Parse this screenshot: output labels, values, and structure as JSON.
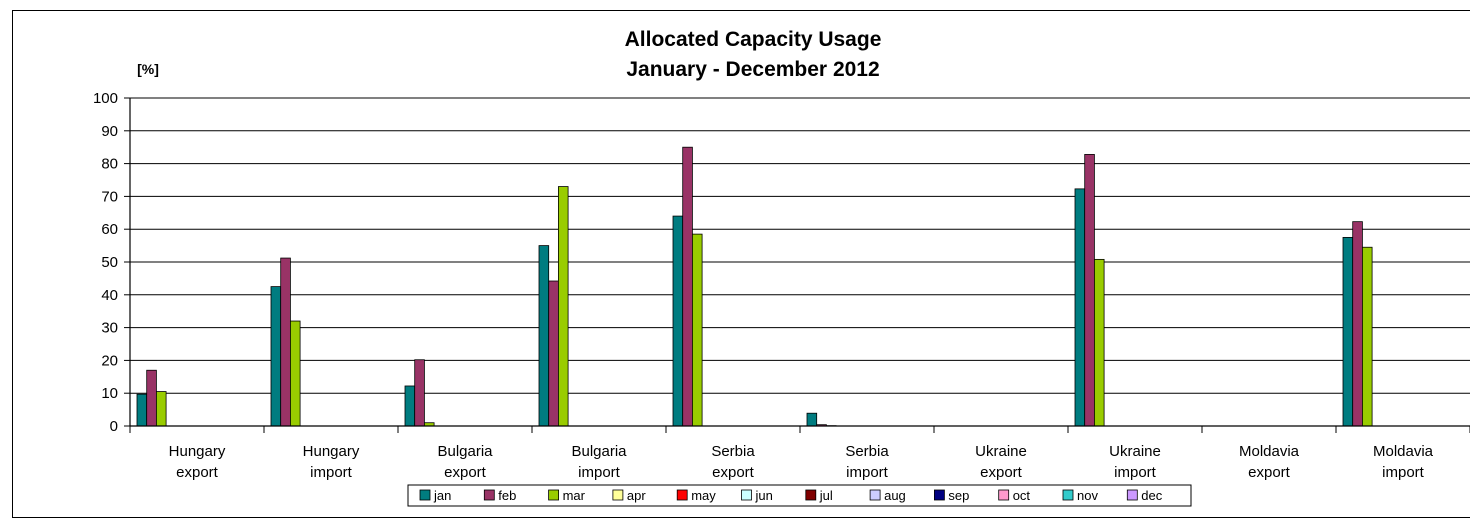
{
  "chart_data": {
    "type": "bar",
    "title_line1": "Allocated Capacity Usage",
    "title_line2": "January - December 2012",
    "ylabel": "[%]",
    "xlabel": "",
    "ylim": [
      0,
      100
    ],
    "yticks": [
      0,
      10,
      20,
      30,
      40,
      50,
      60,
      70,
      80,
      90,
      100
    ],
    "grid": true,
    "legend_position": "bottom",
    "categories": [
      [
        "Hungary",
        "export"
      ],
      [
        "Hungary",
        "import"
      ],
      [
        "Bulgaria",
        "export"
      ],
      [
        "Bulgaria",
        "import"
      ],
      [
        "Serbia",
        "export"
      ],
      [
        "Serbia",
        "import"
      ],
      [
        "Ukraine",
        "export"
      ],
      [
        "Ukraine",
        "import"
      ],
      [
        "Moldavia",
        "export"
      ],
      [
        "Moldavia",
        "import"
      ]
    ],
    "series": [
      {
        "name": "jan",
        "color": "#007C80",
        "values": [
          9.7,
          42.5,
          12.2,
          55,
          64,
          3.9,
          0,
          72.3,
          0,
          57.5
        ]
      },
      {
        "name": "feb",
        "color": "#993366",
        "values": [
          17,
          51.2,
          20.2,
          44.2,
          85,
          0.4,
          0,
          82.8,
          0,
          62.3
        ]
      },
      {
        "name": "mar",
        "color": "#99CC00",
        "values": [
          10.5,
          32,
          1,
          73,
          58.5,
          0.1,
          0,
          50.8,
          0,
          54.5
        ]
      },
      {
        "name": "apr",
        "color": "#FFFF99",
        "values": [
          0,
          0,
          0,
          0,
          0,
          0,
          0,
          0,
          0,
          0
        ]
      },
      {
        "name": "may",
        "color": "#FF0000",
        "values": [
          0,
          0,
          0,
          0,
          0,
          0,
          0,
          0,
          0,
          0
        ]
      },
      {
        "name": "jun",
        "color": "#CCFFFF",
        "values": [
          0,
          0,
          0,
          0,
          0,
          0,
          0,
          0,
          0,
          0
        ]
      },
      {
        "name": "jul",
        "color": "#800000",
        "values": [
          0,
          0,
          0,
          0,
          0,
          0,
          0,
          0,
          0,
          0
        ]
      },
      {
        "name": "aug",
        "color": "#CCCCFF",
        "values": [
          0,
          0,
          0,
          0,
          0,
          0,
          0,
          0,
          0,
          0
        ]
      },
      {
        "name": "sep",
        "color": "#000080",
        "values": [
          0,
          0,
          0,
          0,
          0,
          0,
          0,
          0,
          0,
          0
        ]
      },
      {
        "name": "oct",
        "color": "#FF99CC",
        "values": [
          0,
          0,
          0,
          0,
          0,
          0,
          0,
          0,
          0,
          0
        ]
      },
      {
        "name": "nov",
        "color": "#33CCCC",
        "values": [
          0,
          0,
          0,
          0,
          0,
          0,
          0,
          0,
          0,
          0
        ]
      },
      {
        "name": "dec",
        "color": "#CC99FF",
        "values": [
          0,
          0,
          0,
          0,
          0,
          0,
          0,
          0,
          0,
          0
        ]
      }
    ]
  }
}
